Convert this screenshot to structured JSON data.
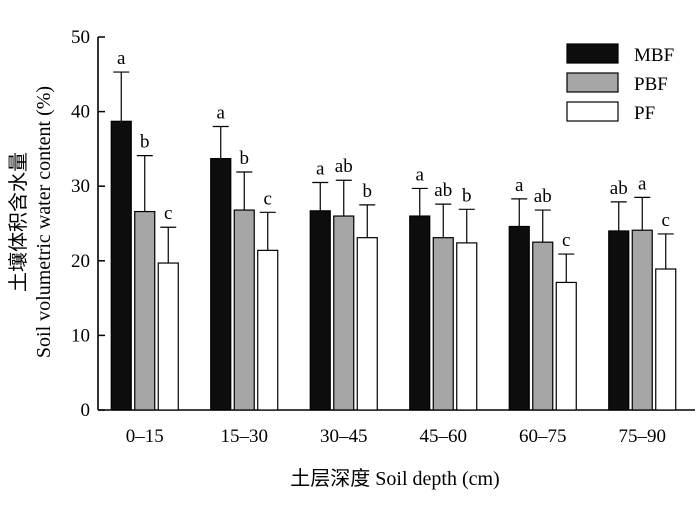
{
  "chart_data": {
    "type": "bar",
    "title": "",
    "xlabel": "土层深度 Soil depth (cm)",
    "ylabel_line1": "土壤体积含水量",
    "ylabel_line2": "Soil volumetric water content (%)",
    "ylim": [
      0,
      50
    ],
    "yticks": [
      0,
      10,
      20,
      30,
      40,
      50
    ],
    "grid": false,
    "legend_position": "top-right",
    "categories": [
      "0–15",
      "15–30",
      "30–45",
      "45–60",
      "60–75",
      "75–90"
    ],
    "series": [
      {
        "name": "MBF",
        "color": "#0d0d0d",
        "values": [
          38.7,
          33.7,
          26.7,
          26.0,
          24.6,
          24.0
        ],
        "errors": [
          6.6,
          4.3,
          3.8,
          3.7,
          3.7,
          3.9
        ],
        "labels": [
          "a",
          "a",
          "a",
          "a",
          "a",
          "ab"
        ]
      },
      {
        "name": "PBF",
        "color": "#a6a6a6",
        "values": [
          26.6,
          26.8,
          26.0,
          23.1,
          22.5,
          24.1
        ],
        "errors": [
          7.5,
          5.1,
          4.8,
          4.5,
          4.3,
          4.4
        ],
        "labels": [
          "b",
          "b",
          "ab",
          "ab",
          "ab",
          "a"
        ]
      },
      {
        "name": "PF",
        "color": "#ffffff",
        "values": [
          19.7,
          21.4,
          23.1,
          22.4,
          17.1,
          18.9
        ],
        "errors": [
          4.8,
          5.1,
          4.4,
          4.5,
          3.8,
          4.7
        ],
        "labels": [
          "c",
          "c",
          "b",
          "b",
          "c",
          "c"
        ]
      }
    ]
  }
}
